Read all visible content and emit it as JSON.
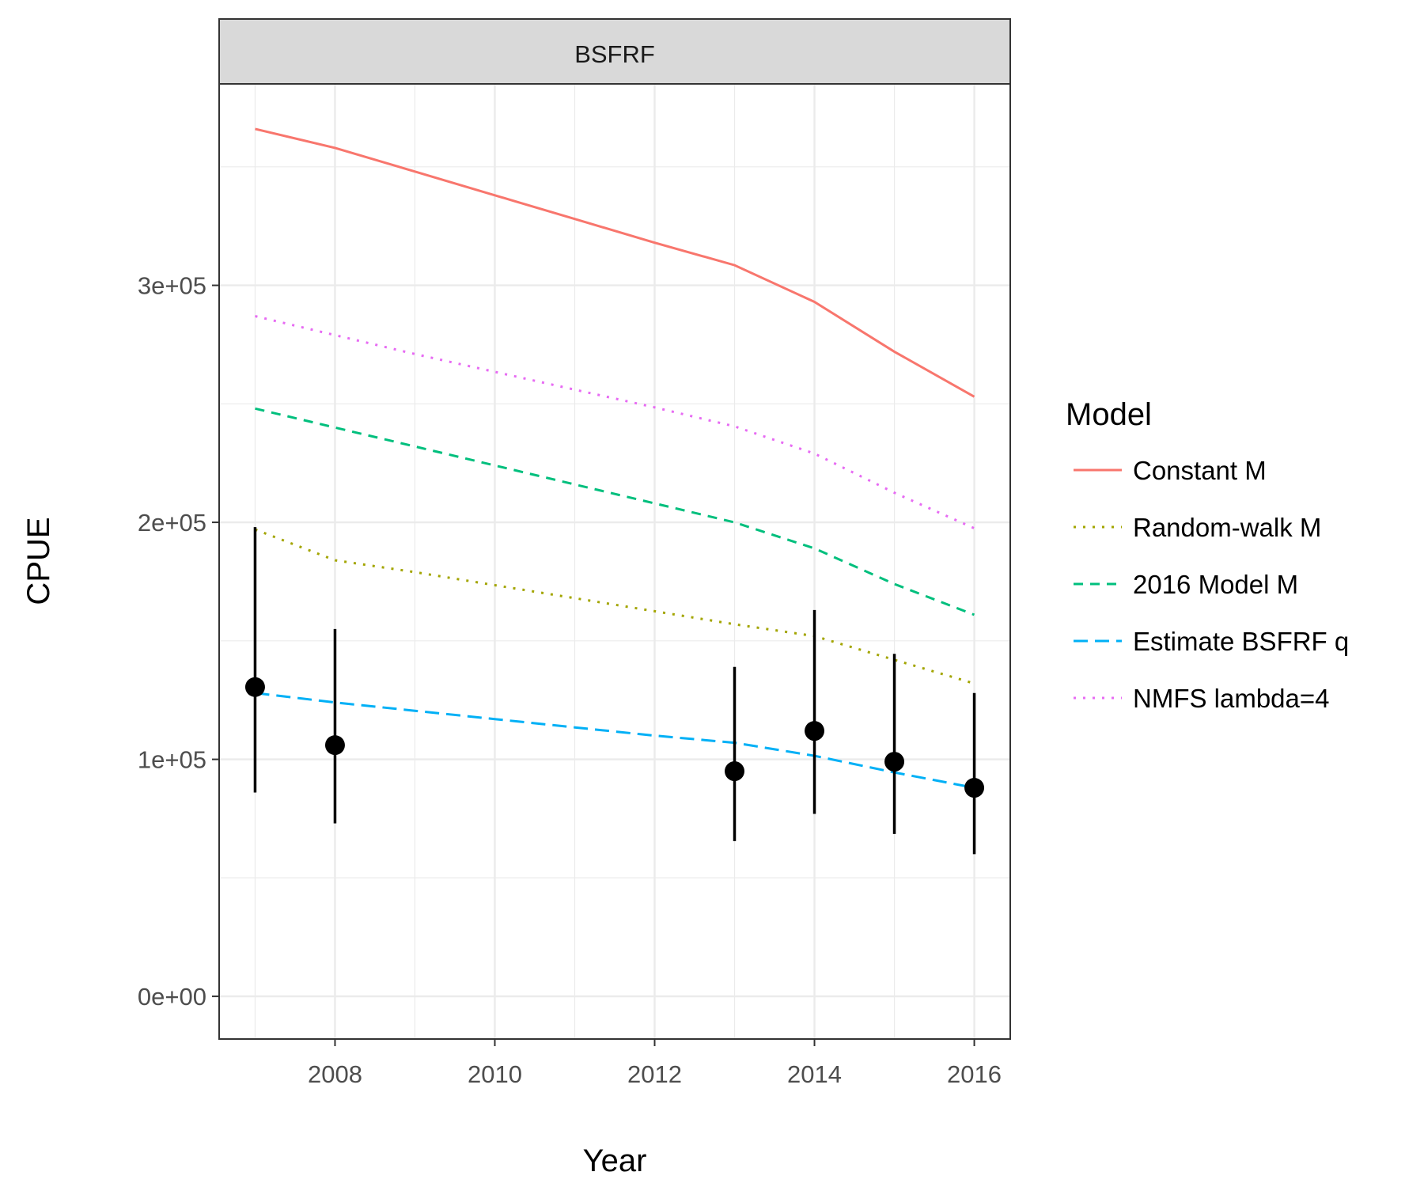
{
  "chart_data": {
    "type": "line",
    "facet_label": "BSFRF",
    "xlabel": "Year",
    "ylabel": "CPUE",
    "xlim": [
      2006.55,
      2016.45
    ],
    "ylim": [
      -18000,
      385000
    ],
    "x_ticks": [
      2008,
      2010,
      2012,
      2014,
      2016
    ],
    "x_tick_labels": [
      "2008",
      "2010",
      "2012",
      "2014",
      "2016"
    ],
    "x_minor_ticks": [
      2007,
      2009,
      2011,
      2013,
      2015
    ],
    "y_ticks": [
      0,
      100000,
      200000,
      300000
    ],
    "y_tick_labels": [
      "0e+00",
      "1e+05",
      "2e+05",
      "3e+05"
    ],
    "y_minor_ticks": [
      50000,
      150000,
      250000,
      350000
    ],
    "grid": true,
    "legend": {
      "title": "Model",
      "placement": "right"
    },
    "series": [
      {
        "name": "Constant M",
        "color": "#F8766D",
        "dash": "solid",
        "x": [
          2007,
          2008,
          2009,
          2010,
          2011,
          2012,
          2013,
          2014,
          2015,
          2016
        ],
        "values": [
          366000,
          358000,
          348000,
          338000,
          328000,
          318000,
          308500,
          293000,
          272000,
          253000
        ]
      },
      {
        "name": "Random-walk M",
        "color": "#A3A500",
        "dash": "dotted",
        "x": [
          2007,
          2008,
          2009,
          2010,
          2011,
          2012,
          2013,
          2014,
          2015,
          2016
        ],
        "values": [
          197000,
          184000,
          179000,
          173500,
          168000,
          162500,
          157000,
          152000,
          142000,
          132000
        ]
      },
      {
        "name": "2016 Model M",
        "color": "#00BF7D",
        "dash": "dashed",
        "x": [
          2007,
          2008,
          2009,
          2010,
          2011,
          2012,
          2013,
          2014,
          2015,
          2016
        ],
        "values": [
          248000,
          240000,
          232000,
          224000,
          216000,
          208000,
          200000,
          189000,
          174000,
          161000
        ]
      },
      {
        "name": "Estimate BSFRF q",
        "color": "#00B0F6",
        "dash": "longdash",
        "x": [
          2007,
          2008,
          2009,
          2010,
          2011,
          2012,
          2013,
          2014,
          2015,
          2016
        ],
        "values": [
          128000,
          124000,
          120500,
          117000,
          113500,
          110000,
          107000,
          101500,
          94500,
          88000
        ]
      },
      {
        "name": "NMFS lambda=4",
        "color": "#E76BF3",
        "dash": "dotted",
        "x": [
          2007,
          2008,
          2009,
          2010,
          2011,
          2012,
          2013,
          2014,
          2015,
          2016
        ],
        "values": [
          287000,
          279000,
          271000,
          263500,
          256000,
          248500,
          240500,
          229000,
          212500,
          197500
        ]
      }
    ],
    "observations": {
      "x": [
        2007,
        2008,
        2013,
        2014,
        2015,
        2016
      ],
      "values": [
        130500,
        106000,
        95000,
        112000,
        99000,
        88000
      ],
      "lower": [
        86000,
        73000,
        65500,
        77000,
        68500,
        60000
      ],
      "upper": [
        198000,
        155000,
        139000,
        163000,
        144500,
        128000
      ],
      "color": "#000000"
    }
  }
}
